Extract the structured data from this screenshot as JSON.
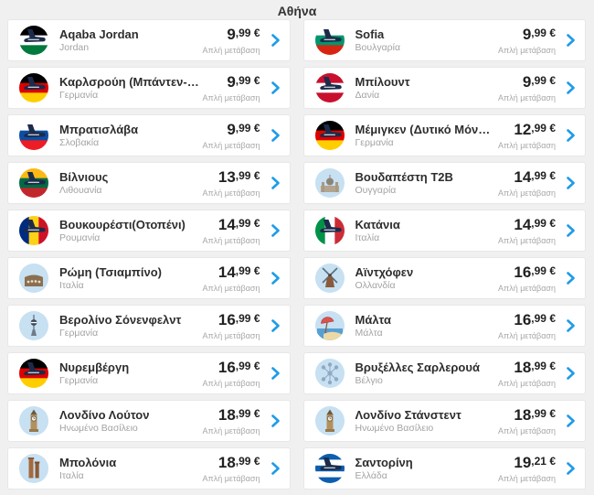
{
  "header": {
    "title": "Αθήνα"
  },
  "shared": {
    "one_way_label": "Απλή μετάβαση"
  },
  "colors": {
    "accent_blue": "#1e9be9",
    "price_text": "#212121",
    "plane": "#1c2b4a",
    "landmark_bg": "#c7e0f2",
    "page_bg": "#f0f0f1",
    "card_border": "#e7e7e8"
  },
  "cards": [
    {
      "destination": "Aqaba Jordan",
      "country": "Jordan",
      "price": "9,99 €",
      "icon": {
        "kind": "flag",
        "dir": "h",
        "stripes": [
          "#000000",
          "#ffffff",
          "#007a3d"
        ],
        "name": "jordan-flag-plane-icon"
      }
    },
    {
      "destination": "Sofia",
      "country": "Βουλγαρία",
      "price": "9,99 €",
      "icon": {
        "kind": "flag",
        "dir": "h",
        "stripes": [
          "#ffffff",
          "#00966e",
          "#d62612"
        ],
        "name": "bulgaria-flag-plane-icon"
      }
    },
    {
      "destination": "Καρλσρούη (Μπάντεν-…",
      "country": "Γερμανία",
      "price": "9,99 €",
      "icon": {
        "kind": "flag",
        "dir": "h",
        "stripes": [
          "#000000",
          "#dd0000",
          "#ffce00"
        ],
        "name": "germany-flag-plane-icon"
      }
    },
    {
      "destination": "Μπίλουντ",
      "country": "Δανία",
      "price": "9,99 €",
      "icon": {
        "kind": "flag",
        "dir": "h",
        "stripes": [
          "#c8102e",
          "#ffffff",
          "#c8102e"
        ],
        "name": "denmark-flag-plane-icon"
      }
    },
    {
      "destination": "Μπρατισλάβα",
      "country": "Σλοβακία",
      "price": "9,99 €",
      "icon": {
        "kind": "flag",
        "dir": "h",
        "stripes": [
          "#ffffff",
          "#0b4ea2",
          "#ee1c25"
        ],
        "name": "slovakia-flag-plane-icon"
      }
    },
    {
      "destination": "Μέμιγκεν (Δυτικό Μόν…",
      "country": "Γερμανία",
      "price": "12,99 €",
      "icon": {
        "kind": "flag",
        "dir": "h",
        "stripes": [
          "#000000",
          "#dd0000",
          "#ffce00"
        ],
        "name": "germany-flag-plane-icon"
      }
    },
    {
      "destination": "Βίλνιους",
      "country": "Λιθουανία",
      "price": "13,99 €",
      "icon": {
        "kind": "flag",
        "dir": "h",
        "stripes": [
          "#fdb913",
          "#006a44",
          "#c1272d"
        ],
        "name": "lithuania-flag-plane-icon"
      }
    },
    {
      "destination": "Βουδαπέστη T2B",
      "country": "Ουγγαρία",
      "price": "14,99 €",
      "icon": {
        "kind": "landmark",
        "glyph": "parliament",
        "name": "parliament-landmark-icon"
      }
    },
    {
      "destination": "Βουκουρέστι(Οτοπένι)",
      "country": "Ρουμανία",
      "price": "14,99 €",
      "icon": {
        "kind": "flag",
        "dir": "v",
        "stripes": [
          "#002b7f",
          "#fcd116",
          "#ce1126"
        ],
        "name": "romania-flag-plane-icon"
      }
    },
    {
      "destination": "Κατάνια",
      "country": "Ιταλία",
      "price": "14,99 €",
      "icon": {
        "kind": "flag",
        "dir": "v",
        "stripes": [
          "#009246",
          "#ffffff",
          "#ce2b37"
        ],
        "name": "italy-flag-plane-icon"
      }
    },
    {
      "destination": "Ρώμη (Τσιαμπίνο)",
      "country": "Ιταλία",
      "price": "14,99 €",
      "icon": {
        "kind": "landmark",
        "glyph": "colosseum",
        "name": "colosseum-landmark-icon"
      }
    },
    {
      "destination": "Αϊντχόφεν",
      "country": "Ολλανδία",
      "price": "16,99 €",
      "icon": {
        "kind": "landmark",
        "glyph": "windmill",
        "name": "windmill-landmark-icon"
      }
    },
    {
      "destination": "Βερολίνο Σόνενφελντ",
      "country": "Γερμανία",
      "price": "16,99 €",
      "icon": {
        "kind": "landmark",
        "glyph": "tvtower",
        "name": "tv-tower-landmark-icon"
      }
    },
    {
      "destination": "Μάλτα",
      "country": "Μάλτα",
      "price": "16,99 €",
      "icon": {
        "kind": "landmark",
        "glyph": "beach",
        "name": "beach-umbrella-landmark-icon"
      }
    },
    {
      "destination": "Νυρεμβέργη",
      "country": "Γερμανία",
      "price": "16,99 €",
      "icon": {
        "kind": "flag",
        "dir": "h",
        "stripes": [
          "#000000",
          "#dd0000",
          "#ffce00"
        ],
        "name": "germany-flag-plane-icon"
      }
    },
    {
      "destination": "Βρυξέλλες Σαρλερουά",
      "country": "Βέλγιο",
      "price": "18,99 €",
      "icon": {
        "kind": "landmark",
        "glyph": "atomium",
        "name": "atomium-landmark-icon"
      }
    },
    {
      "destination": "Λονδίνο Λούτον",
      "country": "Ηνωμένο Βασίλειο",
      "price": "18,99 €",
      "icon": {
        "kind": "landmark",
        "glyph": "bigben",
        "name": "big-ben-landmark-icon"
      }
    },
    {
      "destination": "Λονδίνο Στάνστεντ",
      "country": "Ηνωμένο Βασίλειο",
      "price": "18,99 €",
      "icon": {
        "kind": "landmark",
        "glyph": "bigben",
        "name": "big-ben-landmark-icon"
      }
    },
    {
      "destination": "Μπολόνια",
      "country": "Ιταλία",
      "price": "18,99 €",
      "icon": {
        "kind": "landmark",
        "glyph": "towers",
        "name": "bologna-towers-landmark-icon"
      }
    },
    {
      "destination": "Σαντορίνη",
      "country": "Ελλάδα",
      "price": "19,21 €",
      "icon": {
        "kind": "flag",
        "dir": "h",
        "stripes": [
          "#0d5eaf",
          "#ffffff",
          "#0d5eaf",
          "#ffffff",
          "#0d5eaf"
        ],
        "name": "greece-flag-plane-icon"
      }
    }
  ]
}
